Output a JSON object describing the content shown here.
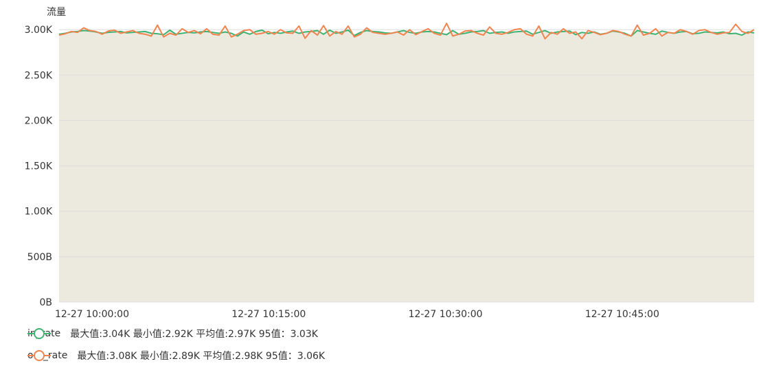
{
  "chart_data": {
    "type": "area",
    "ylabel": "流量",
    "y_ticks": [
      "0B",
      "500B",
      "1.00K",
      "1.50K",
      "2.00K",
      "2.50K",
      "3.00K"
    ],
    "ylim": [
      0,
      3100
    ],
    "x_ticks": [
      "12-27 10:00:00",
      "12-27 10:15:00",
      "12-27 10:30:00",
      "12-27 10:45:00"
    ],
    "x_tick_minutes": [
      0,
      15,
      30,
      45
    ],
    "x_range_minutes": [
      0,
      59
    ],
    "grid": true,
    "area_fill": "#ece9df",
    "series": [
      {
        "name": "in_rate",
        "color": "#3cb371",
        "stats": "最大值:3.04K 最小值:2.92K 平均值:2.97K 95值：3.03K",
        "values": [
          2950,
          2960,
          2975,
          2980,
          2990,
          2985,
          2975,
          2960,
          2970,
          2975,
          2980,
          2965,
          2970,
          2975,
          2980,
          2960,
          2955,
          2945,
          2995,
          2950,
          2960,
          2970,
          2965,
          2975,
          2980,
          2970,
          2960,
          2975,
          2960,
          2930,
          2975,
          2950,
          2980,
          2995,
          2955,
          2970,
          2960,
          2975,
          2985,
          2960,
          2975,
          2980,
          2990,
          2950,
          2995,
          2960,
          2975,
          2995,
          2935,
          2970,
          2990,
          2980,
          2975,
          2965,
          2960,
          2975,
          2990,
          2970,
          2960,
          2975,
          2980,
          2975,
          2960,
          2945,
          2990,
          2950,
          2960,
          2975,
          2980,
          2990,
          2960,
          2970,
          2975,
          2960,
          2975,
          2980,
          2985,
          2950,
          2970,
          2990,
          2960,
          2975,
          2980,
          2985,
          2945,
          2970,
          2960,
          2975,
          2950,
          2960,
          2985,
          2975,
          2960,
          2930,
          2990,
          2975,
          2960,
          2950,
          2985,
          2970,
          2960,
          2975,
          2980,
          2955,
          2960,
          2975,
          2970,
          2965,
          2975,
          2955,
          2960,
          2940,
          2975,
          2965
        ]
      },
      {
        "name": "out_rate",
        "color": "#f0834e",
        "stats": "最大值:3.08K 最小值:2.89K 平均值:2.98K 95值：3.06K",
        "values": [
          2940,
          2955,
          2980,
          2970,
          3020,
          2990,
          2980,
          2950,
          2985,
          2995,
          2960,
          2975,
          2990,
          2960,
          2950,
          2930,
          3050,
          2920,
          2960,
          2940,
          3010,
          2970,
          2990,
          2955,
          3010,
          2950,
          2940,
          3040,
          2920,
          2950,
          2990,
          3000,
          2950,
          2960,
          2980,
          2950,
          3000,
          2965,
          2960,
          3040,
          2905,
          2990,
          2940,
          3045,
          2930,
          2980,
          2950,
          3040,
          2920,
          2950,
          3020,
          2970,
          2960,
          2950,
          2960,
          2975,
          2940,
          3000,
          2945,
          2980,
          3010,
          2960,
          2940,
          3070,
          2930,
          2950,
          2985,
          2990,
          2960,
          2940,
          3030,
          2960,
          2950,
          2970,
          3000,
          3010,
          2950,
          2930,
          3040,
          2900,
          2970,
          2950,
          3010,
          2960,
          2975,
          2900,
          2990,
          2970,
          2945,
          2960,
          2990,
          2980,
          2950,
          2930,
          3050,
          2940,
          2960,
          3010,
          2930,
          2970,
          2960,
          3000,
          2980,
          2950,
          2990,
          3000,
          2970,
          2950,
          2965,
          2970,
          3060,
          2980,
          2960,
          3000
        ]
      }
    ]
  }
}
